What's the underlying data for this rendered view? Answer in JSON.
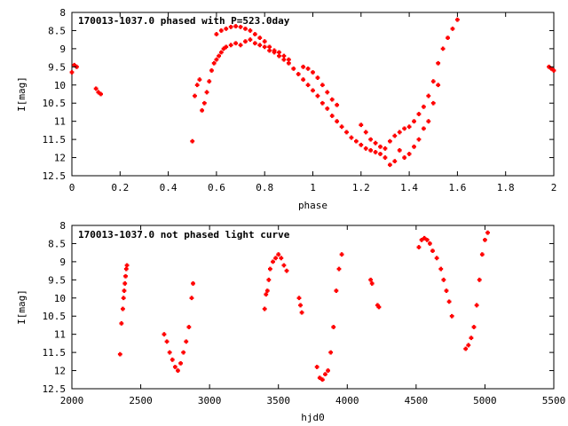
{
  "chart_data": [
    {
      "type": "scatter",
      "title": "170013-1037.0 phased with P=523.0day",
      "xlabel": "phase",
      "ylabel": "I[mag]",
      "xlim": [
        0,
        2
      ],
      "ylim": [
        8,
        12.5
      ],
      "y_inverted": true,
      "grid": false,
      "color": "#ff0000",
      "x_ticks": [
        "0",
        "0.2",
        "0.4",
        "0.6",
        "0.8",
        "1",
        "1.2",
        "1.4",
        "1.6",
        "1.8",
        "2"
      ],
      "y_ticks": [
        "8",
        "8.5",
        "9",
        "9.5",
        "10",
        "10.5",
        "11",
        "11.5",
        "12",
        "12.5"
      ],
      "series": [
        {
          "points": [
            [
              0.0,
              9.65
            ],
            [
              0.01,
              9.45
            ],
            [
              0.02,
              9.5
            ],
            [
              0.1,
              10.1
            ],
            [
              0.11,
              10.2
            ],
            [
              0.12,
              10.25
            ],
            [
              0.5,
              11.55
            ],
            [
              0.51,
              10.3
            ],
            [
              0.52,
              10.0
            ],
            [
              0.53,
              9.85
            ],
            [
              0.54,
              10.7
            ],
            [
              0.55,
              10.5
            ],
            [
              0.56,
              10.2
            ],
            [
              0.57,
              9.9
            ],
            [
              0.58,
              9.6
            ],
            [
              0.59,
              9.4
            ],
            [
              0.6,
              9.3
            ],
            [
              0.61,
              9.2
            ],
            [
              0.62,
              9.1
            ],
            [
              0.63,
              9.0
            ],
            [
              0.64,
              8.95
            ],
            [
              0.66,
              8.9
            ],
            [
              0.68,
              8.85
            ],
            [
              0.7,
              8.9
            ],
            [
              0.72,
              8.8
            ],
            [
              0.74,
              8.75
            ],
            [
              0.76,
              8.85
            ],
            [
              0.78,
              8.9
            ],
            [
              0.8,
              8.95
            ],
            [
              0.82,
              9.05
            ],
            [
              0.84,
              9.1
            ],
            [
              0.86,
              9.2
            ],
            [
              0.88,
              9.3
            ],
            [
              0.9,
              9.4
            ],
            [
              0.92,
              9.55
            ],
            [
              0.94,
              9.7
            ],
            [
              0.96,
              9.85
            ],
            [
              0.98,
              10.0
            ],
            [
              1.0,
              10.15
            ],
            [
              1.02,
              10.3
            ],
            [
              1.04,
              10.5
            ],
            [
              1.06,
              10.65
            ],
            [
              1.08,
              10.85
            ],
            [
              1.1,
              11.0
            ],
            [
              1.12,
              11.15
            ],
            [
              1.14,
              11.3
            ],
            [
              1.16,
              11.45
            ],
            [
              1.18,
              11.55
            ],
            [
              1.2,
              11.65
            ],
            [
              1.22,
              11.75
            ],
            [
              1.24,
              11.8
            ],
            [
              1.26,
              11.85
            ],
            [
              1.28,
              11.9
            ],
            [
              1.3,
              12.0
            ],
            [
              1.32,
              12.2
            ],
            [
              1.34,
              12.1
            ],
            [
              1.36,
              11.8
            ],
            [
              0.6,
              8.6
            ],
            [
              0.62,
              8.5
            ],
            [
              0.64,
              8.45
            ],
            [
              0.66,
              8.4
            ],
            [
              0.68,
              8.38
            ],
            [
              0.7,
              8.4
            ],
            [
              0.72,
              8.45
            ],
            [
              0.74,
              8.5
            ],
            [
              0.76,
              8.6
            ],
            [
              0.78,
              8.7
            ],
            [
              0.8,
              8.8
            ],
            [
              0.82,
              8.95
            ],
            [
              0.84,
              9.05
            ],
            [
              0.86,
              9.1
            ],
            [
              0.88,
              9.2
            ],
            [
              0.9,
              9.3
            ],
            [
              0.96,
              9.5
            ],
            [
              0.98,
              9.55
            ],
            [
              1.0,
              9.65
            ],
            [
              1.02,
              9.8
            ],
            [
              1.04,
              10.0
            ],
            [
              1.06,
              10.2
            ],
            [
              1.08,
              10.4
            ],
            [
              1.1,
              10.55
            ],
            [
              1.2,
              11.1
            ],
            [
              1.22,
              11.3
            ],
            [
              1.24,
              11.5
            ],
            [
              1.26,
              11.6
            ],
            [
              1.28,
              11.7
            ],
            [
              1.3,
              11.75
            ],
            [
              1.32,
              11.55
            ],
            [
              1.34,
              11.4
            ],
            [
              1.36,
              11.3
            ],
            [
              1.38,
              11.2
            ],
            [
              1.4,
              11.15
            ],
            [
              1.42,
              11.0
            ],
            [
              1.44,
              10.8
            ],
            [
              1.46,
              10.6
            ],
            [
              1.48,
              10.3
            ],
            [
              1.5,
              9.9
            ],
            [
              1.52,
              9.4
            ],
            [
              1.54,
              9.0
            ],
            [
              1.56,
              8.7
            ],
            [
              1.58,
              8.45
            ],
            [
              1.6,
              8.2
            ],
            [
              1.38,
              12.0
            ],
            [
              1.4,
              11.9
            ],
            [
              1.42,
              11.7
            ],
            [
              1.44,
              11.5
            ],
            [
              1.46,
              11.2
            ],
            [
              1.48,
              11.0
            ],
            [
              1.5,
              10.5
            ],
            [
              1.52,
              10.0
            ],
            [
              1.98,
              9.5
            ],
            [
              1.99,
              9.55
            ],
            [
              2.0,
              9.6
            ]
          ]
        }
      ]
    },
    {
      "type": "scatter",
      "title": "170013-1037.0 not phased light curve",
      "xlabel": "hjd0",
      "ylabel": "I[mag]",
      "xlim": [
        2000,
        5500
      ],
      "ylim": [
        8,
        12.5
      ],
      "y_inverted": true,
      "grid": false,
      "color": "#ff0000",
      "x_ticks": [
        "2000",
        "2500",
        "3000",
        "3500",
        "4000",
        "4500",
        "5000",
        "5500"
      ],
      "y_ticks": [
        "8",
        "8.5",
        "9",
        "9.5",
        "10",
        "10.5",
        "11",
        "11.5",
        "12",
        "12.5"
      ],
      "series": [
        {
          "points": [
            [
              2350,
              11.55
            ],
            [
              2360,
              10.7
            ],
            [
              2370,
              10.3
            ],
            [
              2375,
              10.0
            ],
            [
              2380,
              9.8
            ],
            [
              2385,
              9.6
            ],
            [
              2390,
              9.4
            ],
            [
              2395,
              9.2
            ],
            [
              2400,
              9.1
            ],
            [
              2670,
              11.0
            ],
            [
              2690,
              11.2
            ],
            [
              2710,
              11.5
            ],
            [
              2730,
              11.7
            ],
            [
              2750,
              11.9
            ],
            [
              2770,
              12.0
            ],
            [
              2790,
              11.8
            ],
            [
              2810,
              11.5
            ],
            [
              2830,
              11.2
            ],
            [
              2850,
              10.8
            ],
            [
              2870,
              10.0
            ],
            [
              2880,
              9.6
            ],
            [
              3400,
              10.3
            ],
            [
              3410,
              9.9
            ],
            [
              3420,
              9.8
            ],
            [
              3430,
              9.5
            ],
            [
              3440,
              9.2
            ],
            [
              3460,
              9.0
            ],
            [
              3480,
              8.9
            ],
            [
              3500,
              8.8
            ],
            [
              3520,
              8.9
            ],
            [
              3540,
              9.1
            ],
            [
              3560,
              9.25
            ],
            [
              3650,
              10.0
            ],
            [
              3660,
              10.2
            ],
            [
              3670,
              10.4
            ],
            [
              3780,
              11.9
            ],
            [
              3800,
              12.2
            ],
            [
              3820,
              12.25
            ],
            [
              3840,
              12.1
            ],
            [
              3860,
              12.0
            ],
            [
              3880,
              11.5
            ],
            [
              3900,
              10.8
            ],
            [
              3920,
              9.8
            ],
            [
              3940,
              9.2
            ],
            [
              3960,
              8.8
            ],
            [
              4170,
              9.5
            ],
            [
              4180,
              9.6
            ],
            [
              4220,
              10.2
            ],
            [
              4230,
              10.25
            ],
            [
              4520,
              8.6
            ],
            [
              4540,
              8.4
            ],
            [
              4560,
              8.35
            ],
            [
              4580,
              8.4
            ],
            [
              4600,
              8.5
            ],
            [
              4620,
              8.7
            ],
            [
              4650,
              8.9
            ],
            [
              4680,
              9.2
            ],
            [
              4700,
              9.5
            ],
            [
              4720,
              9.8
            ],
            [
              4740,
              10.1
            ],
            [
              4760,
              10.5
            ],
            [
              4860,
              11.4
            ],
            [
              4880,
              11.3
            ],
            [
              4900,
              11.1
            ],
            [
              4920,
              10.8
            ],
            [
              4940,
              10.2
            ],
            [
              4960,
              9.5
            ],
            [
              4980,
              8.8
            ],
            [
              5000,
              8.4
            ],
            [
              5020,
              8.2
            ]
          ]
        }
      ]
    }
  ]
}
